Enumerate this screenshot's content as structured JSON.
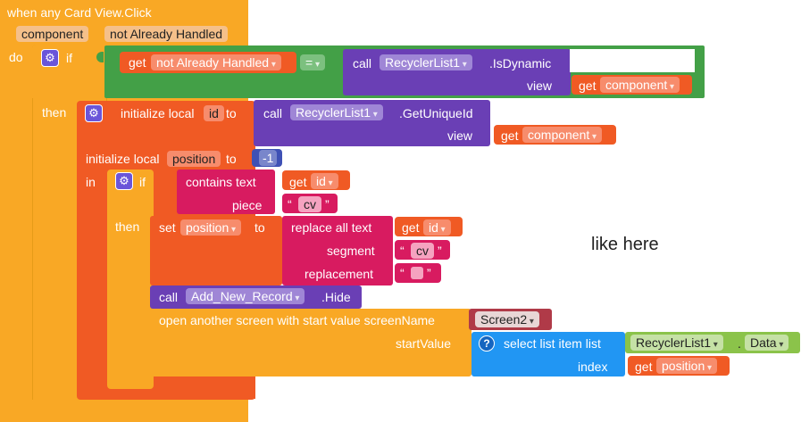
{
  "event": {
    "title": "when any Card View.Click",
    "params": [
      "component",
      "not Already Handled"
    ],
    "do": "do"
  },
  "if1": {
    "if": "if",
    "then": "then",
    "get": "get",
    "var": "not Already Handled",
    "eq": "=",
    "call": "call",
    "component": "RecyclerList1",
    "method": ".IsDynamic",
    "view": "view",
    "view_get": "get",
    "view_var": "component"
  },
  "init_id": {
    "label": "initialize local",
    "name": "id",
    "to": "to",
    "call": "call",
    "component": "RecyclerList1",
    "method": ".GetUniqueId",
    "view": "view",
    "view_get": "get",
    "view_var": "component"
  },
  "init_pos": {
    "label": "initialize local",
    "name": "position",
    "to": "to",
    "value": "-1",
    "in": "in"
  },
  "if2": {
    "if": "if",
    "then": "then",
    "contains": "contains text",
    "get": "get",
    "var": "id",
    "piece": "piece",
    "piece_text": "cv"
  },
  "set": {
    "set": "set",
    "var": "position",
    "to": "to",
    "replace": "replace all text",
    "get": "get",
    "get_var": "id",
    "segment": "segment",
    "segment_text": "cv",
    "replacement": "replacement"
  },
  "hide": {
    "call": "call",
    "component": "Add_New_Record",
    "method": ".Hide"
  },
  "open": {
    "label": "open another screen with start value  screenName",
    "screen": "Screen2",
    "start": "startValue",
    "select": "select list item  list",
    "list_comp": "RecyclerList1",
    "dot": ".",
    "list_prop": "Data",
    "index": "index",
    "get": "get",
    "get_var": "position",
    "q": "?"
  },
  "comment": "like here",
  "colors": {
    "control": "#f9a825",
    "logic": "#43a047",
    "component": "#6a3fb5",
    "variable": "#f05a24",
    "text": "#d81b60",
    "list": "#1e88e5"
  }
}
